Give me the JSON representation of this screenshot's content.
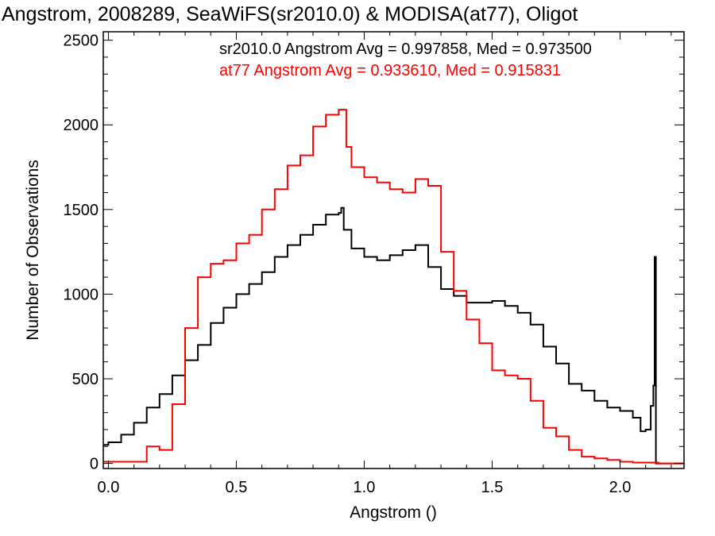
{
  "chart_data": {
    "type": "line",
    "title": "Angstrom, 2008289, SeaWiFS(sr2010.0) & MODISA(at77), Oligot",
    "xlabel": "Angstrom ()",
    "ylabel": "Number of Observations",
    "xlim": [
      -0.02,
      2.25
    ],
    "ylim": [
      -30,
      2550
    ],
    "xticks": [
      0.0,
      0.5,
      1.0,
      1.5,
      2.0
    ],
    "xtick_labels": [
      "0.0",
      "0.5",
      "1.0",
      "1.5",
      "2.0"
    ],
    "yticks": [
      0,
      500,
      1000,
      1500,
      2000,
      2500
    ],
    "ytick_labels": [
      "0",
      "500",
      "1000",
      "1500",
      "2000",
      "2500"
    ],
    "grid": false,
    "annotations": [
      {
        "text": "sr2010.0 Angstrom Avg = 0.997858, Med = 0.973500",
        "color": "#000000"
      },
      {
        "text": "at77 Angstrom Avg = 0.933610, Med = 0.915831",
        "color": "#ff0000"
      }
    ],
    "series": [
      {
        "color": "#000000",
        "style": "step",
        "x": [
          -0.02,
          0.0,
          0.05,
          0.1,
          0.15,
          0.2,
          0.25,
          0.3,
          0.35,
          0.4,
          0.45,
          0.5,
          0.55,
          0.6,
          0.65,
          0.7,
          0.75,
          0.8,
          0.85,
          0.9,
          0.91,
          0.92,
          0.95,
          1.0,
          1.05,
          1.1,
          1.15,
          1.2,
          1.25,
          1.3,
          1.35,
          1.4,
          1.45,
          1.5,
          1.55,
          1.6,
          1.65,
          1.7,
          1.75,
          1.8,
          1.85,
          1.9,
          1.95,
          2.0,
          2.05,
          2.08,
          2.1,
          2.12,
          2.13,
          2.135,
          2.14,
          2.15,
          2.2,
          2.25
        ],
        "y": [
          110,
          125,
          170,
          240,
          330,
          410,
          520,
          610,
          700,
          830,
          920,
          1000,
          1060,
          1130,
          1220,
          1290,
          1350,
          1410,
          1470,
          1480,
          1510,
          1380,
          1270,
          1220,
          1200,
          1230,
          1260,
          1290,
          1160,
          1030,
          990,
          950,
          950,
          960,
          930,
          890,
          820,
          690,
          590,
          470,
          430,
          370,
          330,
          310,
          270,
          190,
          200,
          340,
          460,
          1220,
          0,
          0,
          0,
          0
        ]
      },
      {
        "color": "#ff0000",
        "style": "step",
        "x": [
          -0.02,
          0.0,
          0.1,
          0.15,
          0.2,
          0.25,
          0.3,
          0.35,
          0.4,
          0.45,
          0.5,
          0.55,
          0.6,
          0.65,
          0.7,
          0.75,
          0.8,
          0.85,
          0.9,
          0.93,
          0.95,
          1.0,
          1.05,
          1.1,
          1.15,
          1.2,
          1.25,
          1.3,
          1.35,
          1.4,
          1.45,
          1.5,
          1.55,
          1.6,
          1.65,
          1.7,
          1.75,
          1.8,
          1.85,
          1.9,
          1.95,
          2.0,
          2.05,
          2.1,
          2.15,
          2.2,
          2.25
        ],
        "y": [
          10,
          10,
          10,
          100,
          80,
          350,
          800,
          1100,
          1180,
          1200,
          1300,
          1350,
          1500,
          1620,
          1760,
          1820,
          1990,
          2060,
          2090,
          1870,
          1750,
          1690,
          1660,
          1620,
          1600,
          1680,
          1640,
          1250,
          1020,
          850,
          710,
          550,
          520,
          500,
          370,
          210,
          160,
          80,
          40,
          30,
          20,
          10,
          5,
          5,
          0,
          0,
          0
        ]
      }
    ]
  }
}
